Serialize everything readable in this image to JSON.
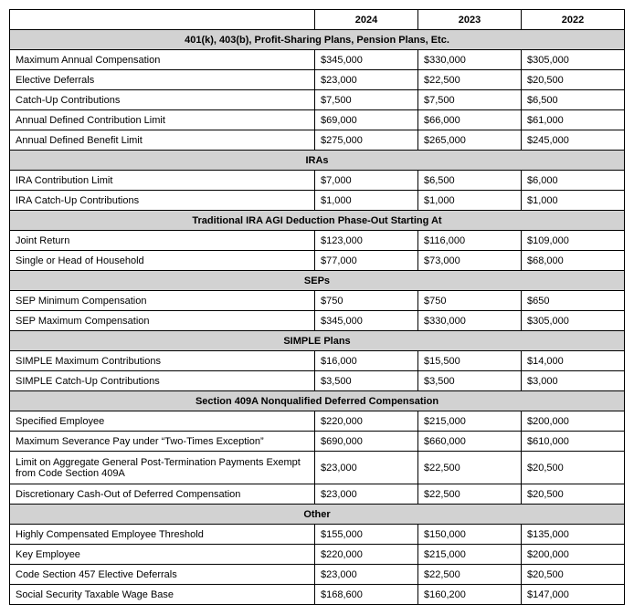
{
  "headers": {
    "y2024": "2024",
    "y2023": "2023",
    "y2022": "2022"
  },
  "sections": [
    {
      "title": "401(k), 403(b), Profit-Sharing Plans, Pension Plans, Etc.",
      "rows": [
        {
          "label": "Maximum Annual Compensation",
          "v2024": "$345,000",
          "v2023": "$330,000",
          "v2022": "$305,000"
        },
        {
          "label": "Elective Deferrals",
          "v2024": "$23,000",
          "v2023": "$22,500",
          "v2022": "$20,500"
        },
        {
          "label": "Catch-Up Contributions",
          "v2024": "$7,500",
          "v2023": "$7,500",
          "v2022": "$6,500"
        },
        {
          "label": "Annual Defined Contribution Limit",
          "v2024": "$69,000",
          "v2023": "$66,000",
          "v2022": "$61,000"
        },
        {
          "label": "Annual Defined Benefit Limit",
          "v2024": "$275,000",
          "v2023": "$265,000",
          "v2022": "$245,000"
        }
      ]
    },
    {
      "title": "IRAs",
      "rows": [
        {
          "label": "IRA Contribution Limit",
          "v2024": "$7,000",
          "v2023": "$6,500",
          "v2022": "$6,000"
        },
        {
          "label": "IRA Catch-Up Contributions",
          "v2024": "$1,000",
          "v2023": "$1,000",
          "v2022": "$1,000"
        }
      ]
    },
    {
      "title": "Traditional IRA AGI Deduction Phase-Out Starting At",
      "rows": [
        {
          "label": "Joint Return",
          "v2024": "$123,000",
          "v2023": "$116,000",
          "v2022": "$109,000"
        },
        {
          "label": "Single or Head of Household",
          "v2024": "$77,000",
          "v2023": "$73,000",
          "v2022": "$68,000"
        }
      ]
    },
    {
      "title": "SEPs",
      "rows": [
        {
          "label": "SEP Minimum Compensation",
          "v2024": "$750",
          "v2023": "$750",
          "v2022": "$650"
        },
        {
          "label": "SEP Maximum Compensation",
          "v2024": "$345,000",
          "v2023": "$330,000",
          "v2022": "$305,000"
        }
      ]
    },
    {
      "title": "SIMPLE Plans",
      "rows": [
        {
          "label": "SIMPLE Maximum Contributions",
          "v2024": "$16,000",
          "v2023": "$15,500",
          "v2022": "$14,000"
        },
        {
          "label": "SIMPLE Catch-Up Contributions",
          "v2024": "$3,500",
          "v2023": "$3,500",
          "v2022": "$3,000"
        }
      ]
    },
    {
      "title": "Section 409A Nonqualified Deferred Compensation",
      "rows": [
        {
          "label": "Specified Employee",
          "v2024": "$220,000",
          "v2023": "$215,000",
          "v2022": "$200,000"
        },
        {
          "label": "Maximum Severance Pay under “Two-Times Exception”",
          "v2024": "$690,000",
          "v2023": "$660,000",
          "v2022": "$610,000"
        },
        {
          "label": "Limit on Aggregate General Post-Termination Payments Exempt from Code Section 409A",
          "v2024": "$23,000",
          "v2023": "$22,500",
          "v2022": "$20,500",
          "tall": true
        },
        {
          "label": "Discretionary Cash-Out of Deferred Compensation",
          "v2024": "$23,000",
          "v2023": "$22,500",
          "v2022": "$20,500"
        }
      ]
    },
    {
      "title": "Other",
      "rows": [
        {
          "label": "Highly Compensated Employee Threshold",
          "v2024": "$155,000",
          "v2023": "$150,000",
          "v2022": "$135,000"
        },
        {
          "label": "Key Employee",
          "v2024": "$220,000",
          "v2023": "$215,000",
          "v2022": "$200,000"
        },
        {
          "label": "Code Section 457 Elective Deferrals",
          "v2024": "$23,000",
          "v2023": "$22,500",
          "v2022": "$20,500"
        },
        {
          "label": "Social Security Taxable Wage Base",
          "v2024": "$168,600",
          "v2023": "$160,200",
          "v2022": "$147,000"
        }
      ]
    }
  ],
  "style": {
    "section_bg": "#d2d2d2",
    "border_color": "#000000",
    "font_size": 11
  }
}
